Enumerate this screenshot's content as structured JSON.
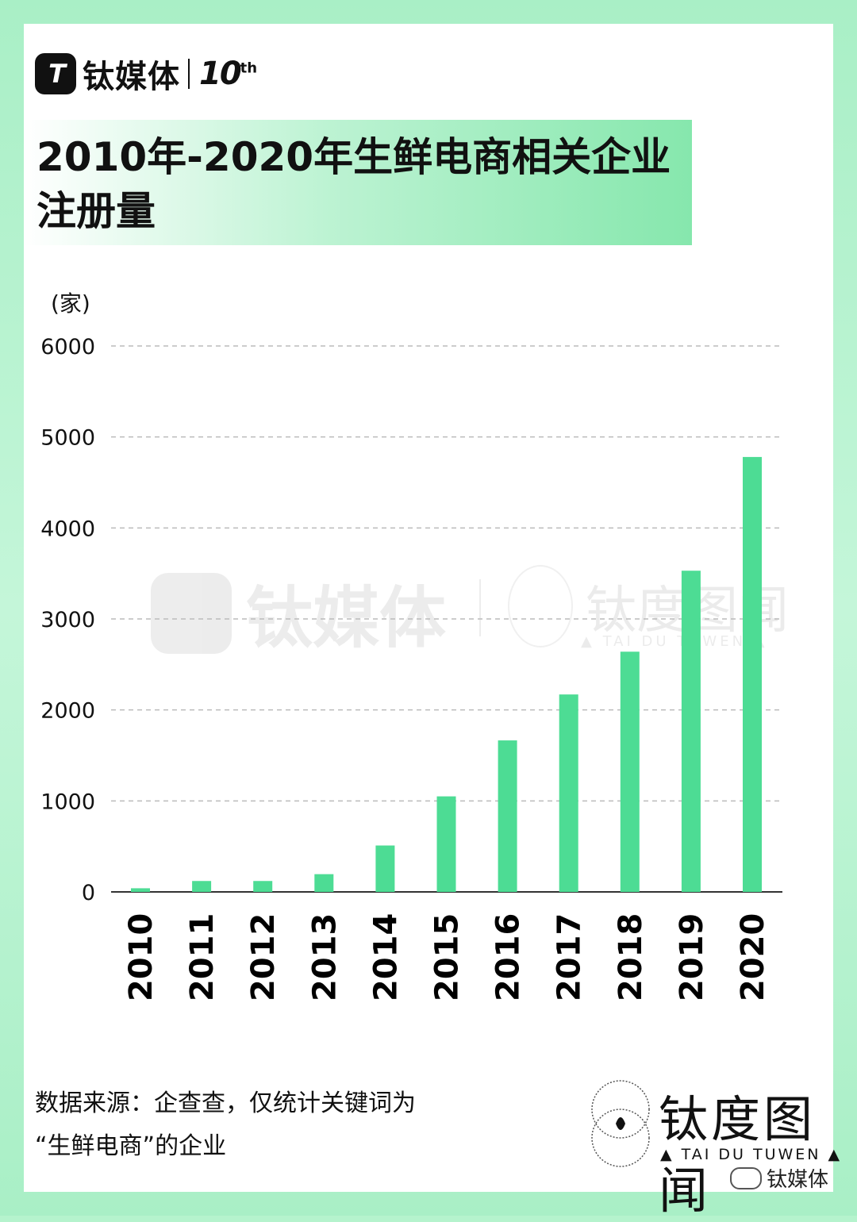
{
  "header": {
    "logo_text": "钛媒体",
    "anniversary": "10",
    "anniversary_sup": "th",
    "title": "2010年-2020年生鲜电商相关企业注册量"
  },
  "chart_data": {
    "type": "bar",
    "title": "2010年-2020年生鲜电商相关企业注册量",
    "unit_label": "(家)",
    "xlabel": "",
    "ylabel": "",
    "categories": [
      "2010",
      "2011",
      "2012",
      "2013",
      "2014",
      "2015",
      "2016",
      "2017",
      "2018",
      "2019",
      "2020"
    ],
    "values": [
      40,
      120,
      120,
      195,
      510,
      1050,
      1665,
      2170,
      2640,
      3530,
      4780
    ],
    "ylim": [
      0,
      6000
    ],
    "yticks": [
      "0",
      "1000",
      "2000",
      "3000",
      "4000",
      "5000",
      "6000"
    ],
    "ytick_values": [
      0,
      1000,
      2000,
      3000,
      4000,
      5000,
      6000
    ],
    "grid": "dashed horizontal",
    "bar_color": "#4ddc94"
  },
  "watermark": {
    "logo_text": "钛媒体",
    "brand_text": "钛度图闻",
    "brand_sub": "▲ TAI DU TUWEN ▲"
  },
  "footer": {
    "source_line1": "数据来源：企查查，仅统计关键词为",
    "source_line2": "“生鲜电商”的企业",
    "brand_name": "钛度图闻",
    "brand_sub": "▲ TAI DU TUWEN ▲",
    "wechat_label": "钛媒体"
  },
  "colors": {
    "background": "#b5f3cd",
    "bar": "#4ddc94",
    "title_gradient_end": "#86e7ad"
  }
}
